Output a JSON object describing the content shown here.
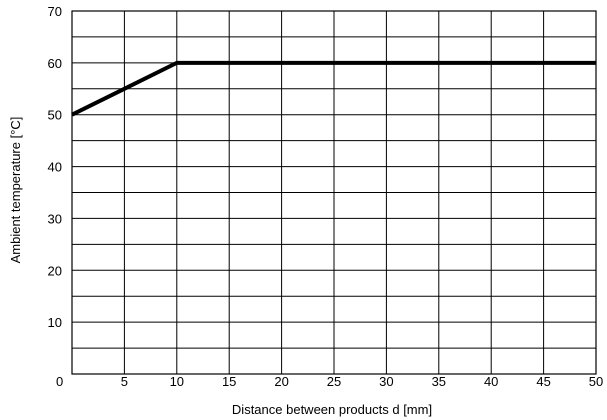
{
  "chart_data": {
    "type": "line",
    "title": "",
    "xlabel": "Distance between products d [mm]",
    "ylabel": "Ambient temperature [°C]",
    "xlim": [
      0,
      50
    ],
    "ylim": [
      0,
      70
    ],
    "x_ticks": [
      0,
      5,
      10,
      15,
      20,
      25,
      30,
      35,
      40,
      45,
      50
    ],
    "y_ticks": [
      0,
      10,
      20,
      30,
      40,
      50,
      60,
      70
    ],
    "x_tick_labels": [
      "0",
      "5",
      "10",
      "15",
      "20",
      "25",
      "30",
      "35",
      "40",
      "45",
      "50"
    ],
    "y_tick_labels": [
      "0",
      "10",
      "20",
      "30",
      "40",
      "50",
      "60",
      "70"
    ],
    "grid": true,
    "legend": "none",
    "series": [
      {
        "x": [
          0,
          5,
          10,
          50
        ],
        "y": [
          50,
          55,
          60,
          60
        ],
        "color": "#000000"
      }
    ]
  }
}
